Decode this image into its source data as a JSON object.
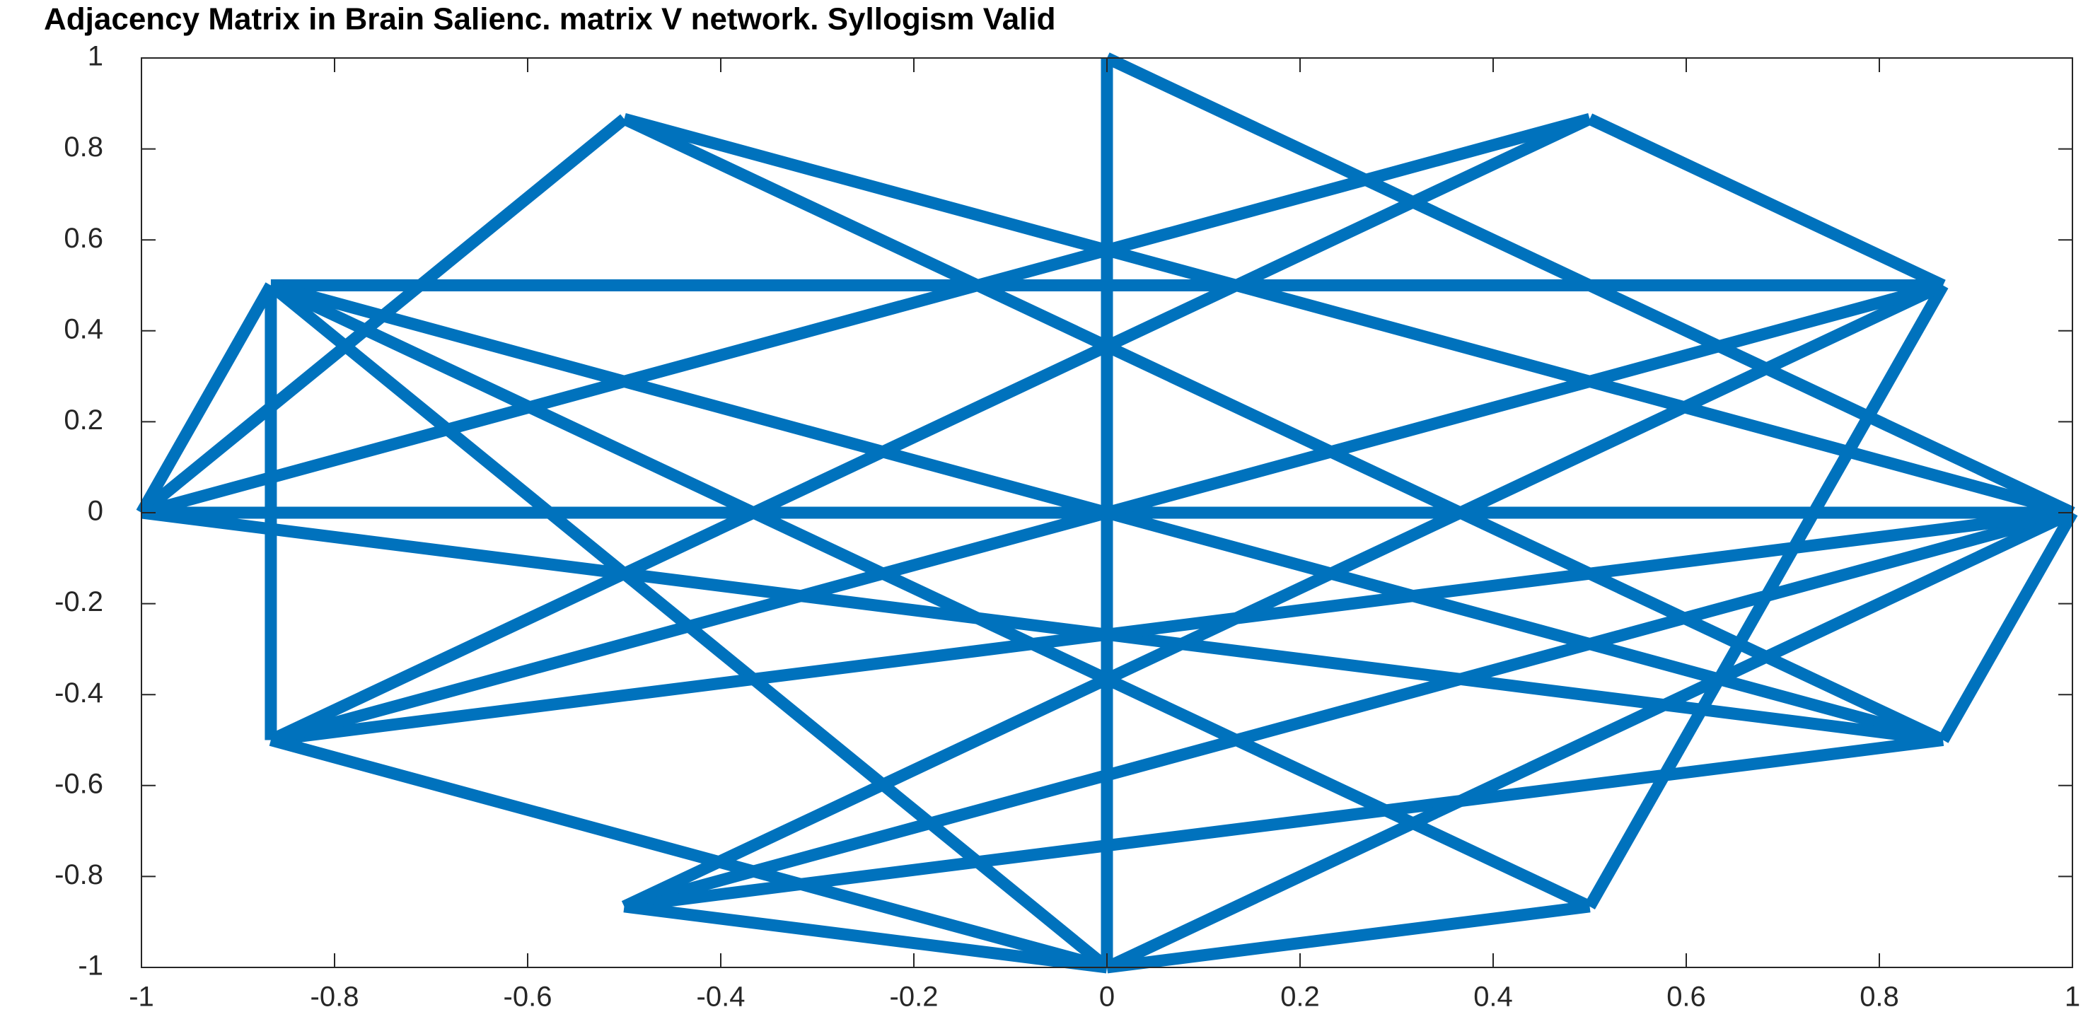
{
  "chart_data": {
    "type": "graph",
    "title": "Adjacency Matrix in Brain Salienc. matrix V network. Syllogism Valid",
    "nodes": {
      "x": [
        1,
        0.866,
        0.5,
        0,
        -0.5,
        -0.866,
        -1,
        -0.866,
        -0.5,
        0,
        0.5,
        0.866
      ],
      "y": [
        0,
        0.5,
        0.866,
        1,
        0.866,
        0.5,
        0,
        -0.5,
        -0.866,
        -1,
        -0.866,
        -0.5
      ]
    },
    "edges": [
      [
        3,
        9
      ],
      [
        3,
        0
      ],
      [
        4,
        11
      ],
      [
        4,
        6
      ],
      [
        4,
        0
      ],
      [
        2,
        1
      ],
      [
        2,
        6
      ],
      [
        2,
        7
      ],
      [
        5,
        1
      ],
      [
        5,
        7
      ],
      [
        5,
        6
      ],
      [
        5,
        9
      ],
      [
        5,
        11
      ],
      [
        5,
        10
      ],
      [
        6,
        0
      ],
      [
        6,
        11
      ],
      [
        7,
        0
      ],
      [
        8,
        0
      ],
      [
        1,
        10
      ],
      [
        1,
        8
      ],
      [
        1,
        7
      ],
      [
        11,
        0
      ],
      [
        8,
        11
      ],
      [
        8,
        9
      ],
      [
        10,
        9
      ],
      [
        7,
        9
      ],
      [
        9,
        0
      ]
    ],
    "color": "#0072bd",
    "xlim": [
      -1,
      1
    ],
    "ylim": [
      -1,
      1
    ],
    "xticks": [
      -1,
      -0.8,
      -0.6,
      -0.4,
      -0.2,
      0,
      0.2,
      0.4,
      0.6,
      0.8,
      1
    ],
    "yticks": [
      -1,
      -0.8,
      -0.6,
      -0.4,
      -0.2,
      0,
      0.2,
      0.4,
      0.6,
      0.8,
      1
    ]
  }
}
